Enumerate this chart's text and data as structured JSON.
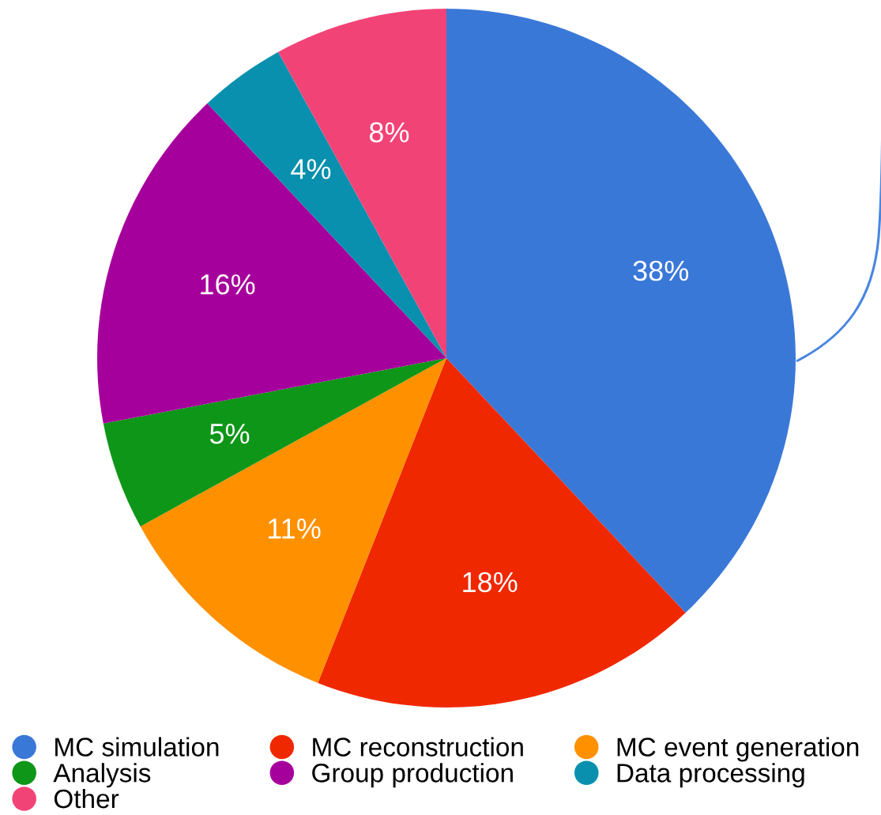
{
  "chart_data": {
    "type": "pie",
    "categories": [
      "MC simulation",
      "MC reconstruction",
      "MC event generation",
      "Analysis",
      "Group production",
      "Data processing",
      "Other"
    ],
    "values": [
      38,
      18,
      11,
      5,
      16,
      4,
      8
    ],
    "value_labels": [
      "38%",
      "18%",
      "11%",
      "5%",
      "16%",
      "4%",
      "8%"
    ],
    "colors": [
      "#3a78d8",
      "#f02800",
      "#ff9000",
      "#0e9618",
      "#a6009c",
      "#0890ae",
      "#f24377"
    ],
    "legend": "bottom"
  }
}
